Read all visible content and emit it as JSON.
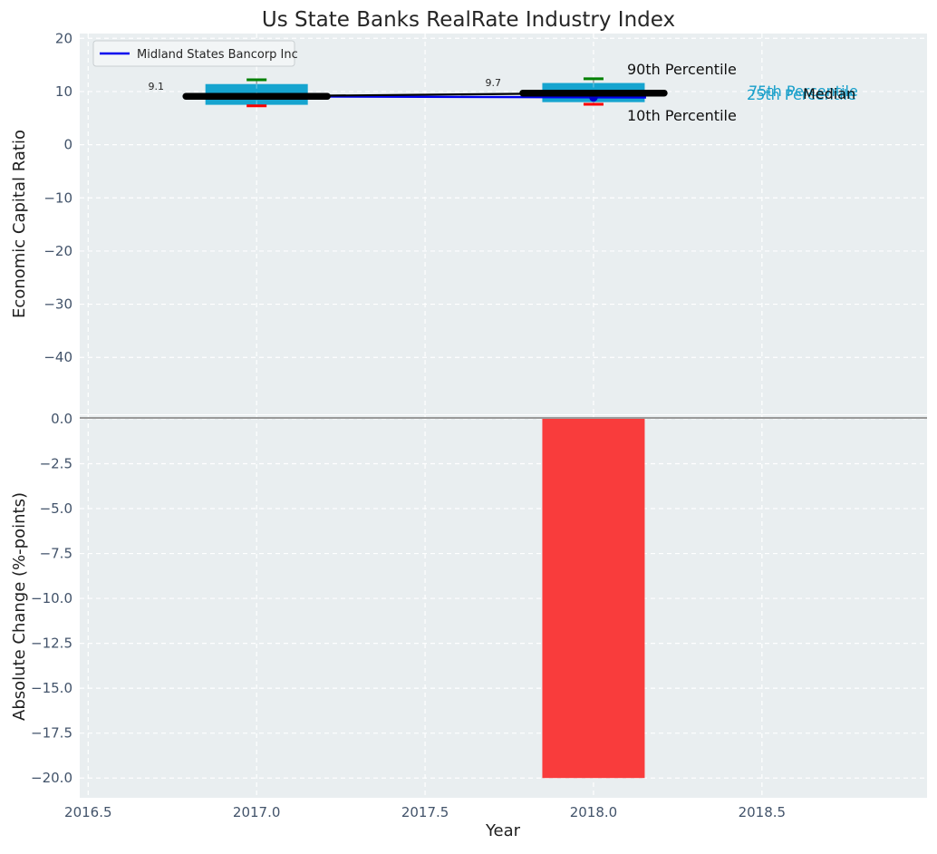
{
  "title": "Us State Banks RealRate Industry Index",
  "legend": {
    "label": "Midland States Bancorp Inc"
  },
  "annotations": {
    "p90": "90th Percentile",
    "p10": "10th Percentile",
    "p75": "75th Percentile",
    "p25": "25th Percentile",
    "median": "Median"
  },
  "colors": {
    "figure_bg": "#ffffff",
    "plot_bg": "#e9eef0",
    "grid": "#ffffff",
    "tick_label": "#42536a",
    "text": "#262626",
    "box_fill": "#16a4cf",
    "p90_cap": "#008000",
    "p10_cap": "#fb0000",
    "median_line": "#000000",
    "company_line": "#0000ee",
    "company_marker": "#0000cc",
    "whisker": "#888888",
    "bar_fill": "#f93c3c",
    "zero_line": "#9a9a9a",
    "percentile_label": "#189fca",
    "legend_bg": "#f2f5f6",
    "legend_border": "#c9ced1"
  },
  "chart_data": [
    {
      "type": "boxplot+line",
      "subplot": "top",
      "ylabel": "Economic Capital Ratio",
      "x": [
        2017,
        2018
      ],
      "boxes": [
        {
          "x": 2017,
          "p10": 7.3,
          "p25": 7.5,
          "median": 9.1,
          "p75": 11.4,
          "p90": 12.2
        },
        {
          "x": 2018,
          "p10": 7.6,
          "p25": 8.0,
          "median": 9.7,
          "p75": 11.6,
          "p90": 12.4
        }
      ],
      "median_trend": [
        9.1,
        9.7
      ],
      "series": [
        {
          "name": "Midland States Bancorp Inc",
          "values": [
            9.1,
            8.9
          ]
        }
      ],
      "point_labels": [
        "9.1",
        "9.7"
      ],
      "ylim": [
        -50.7,
        20.9
      ],
      "yticks": [
        20,
        10,
        0,
        -10,
        -20,
        -30,
        -40
      ],
      "ytick_labels": [
        "20",
        "10",
        "0",
        "−10",
        "−20",
        "−30",
        "−40"
      ],
      "xlim": [
        2016.475,
        2018.99
      ],
      "xticks": [
        2016.5,
        2017.0,
        2017.5,
        2018.0,
        2018.5
      ],
      "xtick_labels": [
        "2016.5",
        "2017.0",
        "2017.5",
        "2018.0",
        "2018.5"
      ],
      "grid": true,
      "legend_position": "upper left"
    },
    {
      "type": "bar",
      "subplot": "bottom",
      "ylabel": "Absolute Change (%-points)",
      "xlabel": "Year",
      "x": [
        2018
      ],
      "values": [
        -20.0
      ],
      "ylim": [
        0.2,
        -21.1
      ],
      "yticks": [
        0,
        -2.5,
        -5,
        -7.5,
        -10,
        -12.5,
        -15,
        -17.5,
        -20
      ],
      "ytick_labels": [
        "0.0",
        "−2.5",
        "−5.0",
        "−7.5",
        "−10.0",
        "−12.5",
        "−15.0",
        "−17.5",
        "−20.0"
      ],
      "grid": true
    }
  ]
}
